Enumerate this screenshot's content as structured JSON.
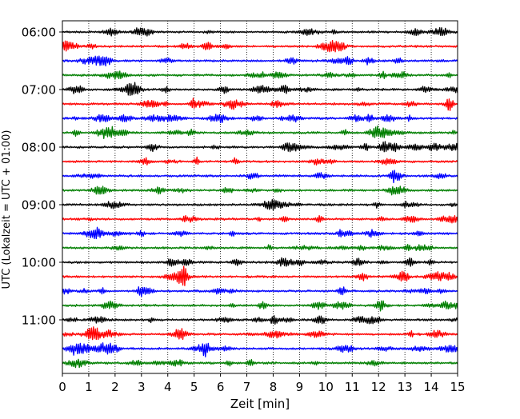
{
  "chart_data": {
    "type": "line",
    "title": "",
    "xlabel": "Zeit  [min]",
    "ylabel": "UTC (Lokalzeit = UTC + 01:00)",
    "xlim": [
      0,
      15
    ],
    "x_ticks": [
      0,
      1,
      2,
      3,
      4,
      5,
      6,
      7,
      8,
      9,
      10,
      11,
      12,
      13,
      14,
      15
    ],
    "x_tick_labels": [
      "0",
      "1",
      "2",
      "3",
      "4",
      "5",
      "6",
      "7",
      "8",
      "9",
      "10",
      "11",
      "12",
      "13",
      "14",
      "15"
    ],
    "y_tick_labels": [
      "06:00",
      "07:00",
      "08:00",
      "09:00",
      "10:00",
      "11:00"
    ],
    "grid": "vertical dotted lines at each minute",
    "trace_interval_minutes": 15,
    "traces": [
      {
        "start": "06:00",
        "color": "#000000"
      },
      {
        "start": "06:15",
        "color": "#ff0000"
      },
      {
        "start": "06:30",
        "color": "#0000ff"
      },
      {
        "start": "06:45",
        "color": "#007f00"
      },
      {
        "start": "07:00",
        "color": "#000000"
      },
      {
        "start": "07:15",
        "color": "#ff0000"
      },
      {
        "start": "07:30",
        "color": "#0000ff"
      },
      {
        "start": "07:45",
        "color": "#007f00"
      },
      {
        "start": "08:00",
        "color": "#000000"
      },
      {
        "start": "08:15",
        "color": "#ff0000"
      },
      {
        "start": "08:30",
        "color": "#0000ff"
      },
      {
        "start": "08:45",
        "color": "#007f00"
      },
      {
        "start": "09:00",
        "color": "#000000"
      },
      {
        "start": "09:15",
        "color": "#ff0000"
      },
      {
        "start": "09:30",
        "color": "#0000ff"
      },
      {
        "start": "09:45",
        "color": "#007f00"
      },
      {
        "start": "10:00",
        "color": "#000000"
      },
      {
        "start": "10:15",
        "color": "#ff0000"
      },
      {
        "start": "10:30",
        "color": "#0000ff"
      },
      {
        "start": "10:45",
        "color": "#007f00"
      },
      {
        "start": "11:00",
        "color": "#000000"
      },
      {
        "start": "11:15",
        "color": "#ff0000"
      },
      {
        "start": "11:30",
        "color": "#0000ff"
      },
      {
        "start": "11:45",
        "color": "#007f00"
      }
    ]
  }
}
